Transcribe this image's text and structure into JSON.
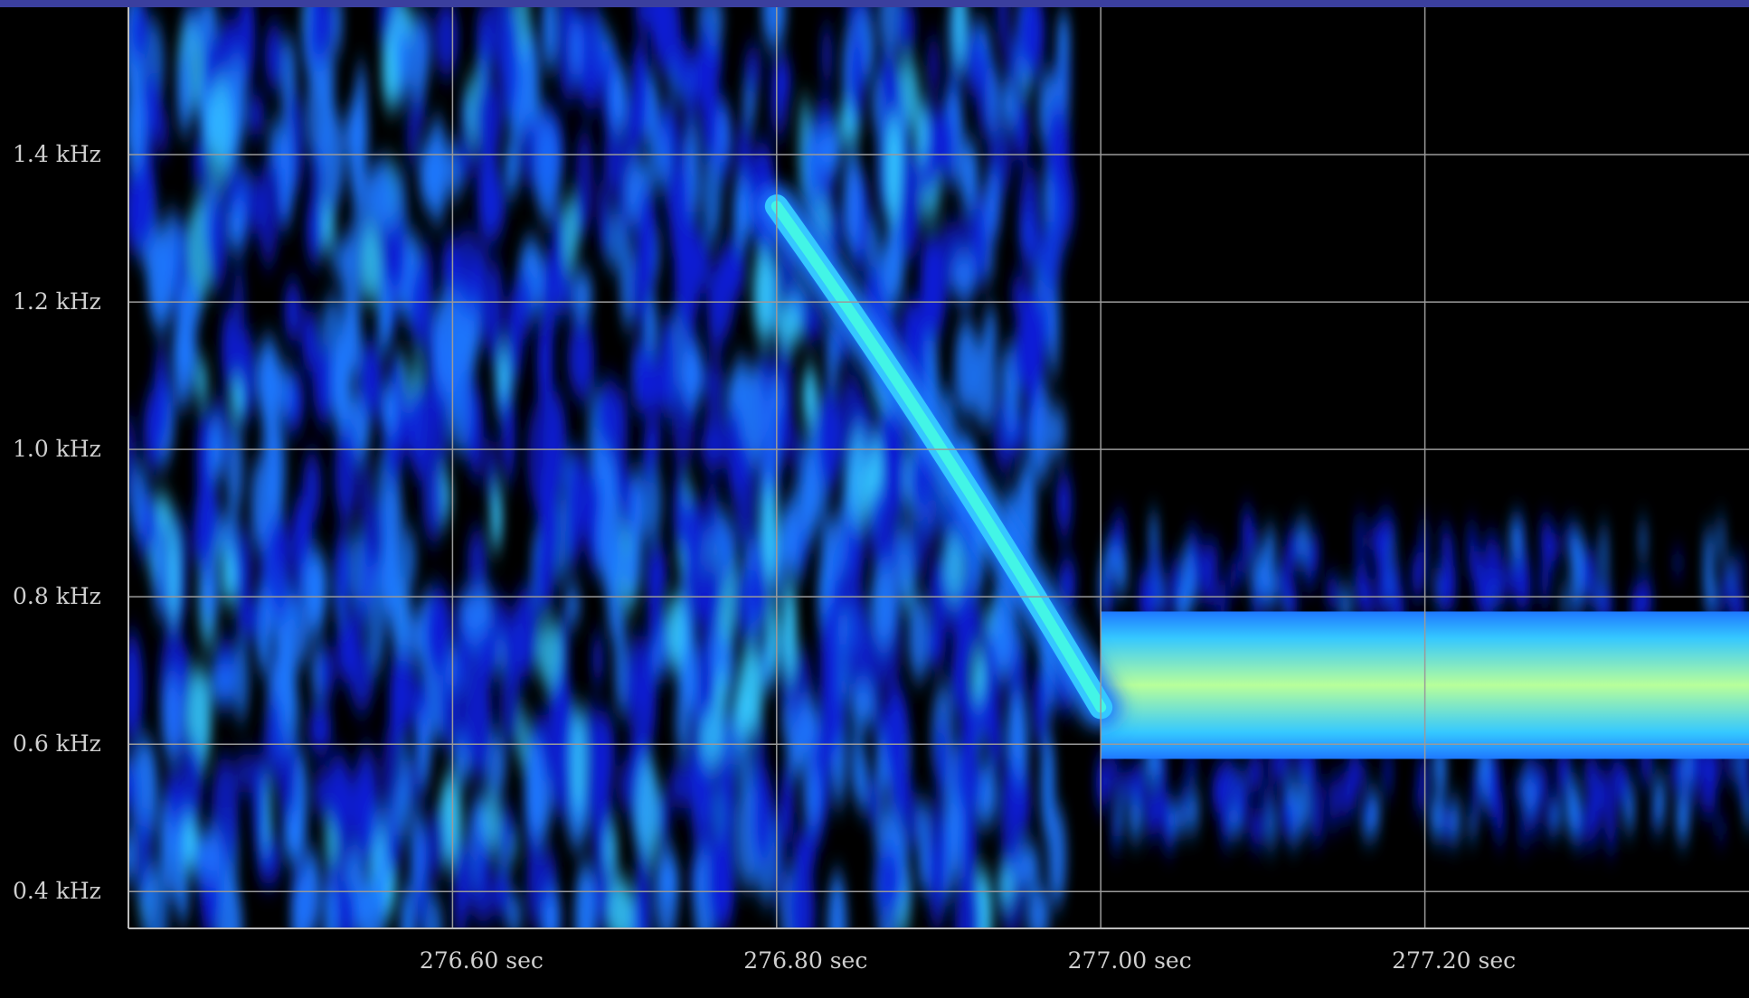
{
  "chart_data": {
    "type": "heatmap",
    "title": "",
    "xlabel": "",
    "ylabel": "",
    "x_unit": "sec",
    "y_unit": "kHz",
    "xlim": [
      276.4,
      277.4
    ],
    "ylim": [
      0.35,
      1.6
    ],
    "x_ticks": [
      276.6,
      276.8,
      277.0,
      277.2
    ],
    "x_tick_labels": [
      "276.60 sec",
      "276.80 sec",
      "277.00 sec",
      "277.20 sec"
    ],
    "y_ticks": [
      1.4,
      1.2,
      1.0,
      0.8,
      0.6,
      0.4
    ],
    "y_tick_labels": [
      "1.4 kHz",
      "1.2 kHz",
      "1.0 kHz",
      "0.8 kHz",
      "0.6 kHz",
      "0.4 kHz"
    ],
    "grid": true,
    "colormap": [
      "#000000",
      "#0a1fd6",
      "#1e78ff",
      "#35c8ff",
      "#43f5e6",
      "#b8ff9a"
    ],
    "features": {
      "noise_band_end_sec": 276.98,
      "chirp": {
        "start": [
          276.8,
          1.33
        ],
        "end": [
          277.0,
          0.65
        ]
      },
      "tone_band": {
        "start_sec": 277.0,
        "low_khz": 0.58,
        "high_khz": 0.78
      }
    }
  }
}
